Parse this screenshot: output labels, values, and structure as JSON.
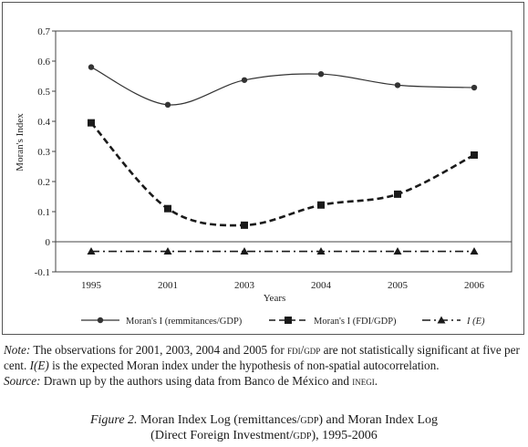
{
  "chart_data": {
    "type": "line",
    "x": [
      "1995",
      "2001",
      "2003",
      "2004",
      "2005",
      "2006"
    ],
    "xlabel": "Years",
    "ylabel": "Moran's Index",
    "ylim": [
      -0.1,
      0.7
    ],
    "yticks": [
      "0.7",
      "0.6",
      "0.5",
      "0.4",
      "0.3",
      "0.2",
      "0.1",
      "0",
      "-0.1"
    ],
    "grid": false,
    "legend_position": "bottom",
    "series": [
      {
        "name": "Moran's I (remmitances/GDP)",
        "values": [
          0.58,
          0.455,
          0.537,
          0.557,
          0.52,
          0.512
        ],
        "style": "solid",
        "marker": "circle",
        "color": "#333333"
      },
      {
        "name": "Moran's I (FDI/GDP)",
        "values": [
          0.395,
          0.11,
          0.055,
          0.122,
          0.158,
          0.288
        ],
        "style": "dashed",
        "marker": "square",
        "color": "#1a1a1a"
      },
      {
        "name": "I (E)",
        "values": [
          -0.032,
          -0.032,
          -0.032,
          -0.032,
          -0.032,
          -0.032
        ],
        "style": "dash-dot",
        "marker": "triangle",
        "color": "#1a1a1a"
      }
    ]
  },
  "notes": {
    "note_label": "Note:",
    "note_a": " The observations for 2001, 2003, 2004 and 2005 for ",
    "note_fdi": "fdi/gdp",
    "note_b": " are not statistically significant at five per cent. ",
    "note_ie": "I(E)",
    "note_c": " is the expected Moran index under the hypothesis of non-spatial autocorrelation.",
    "source_label": "Source:",
    "source_a": " Drawn up by the authors using data from Banco de México and ",
    "source_inegi": "inegi",
    "source_b": "."
  },
  "caption": {
    "label": "Figure 2.",
    "line1_a": " Moran Index Log (remittances/",
    "line1_gdp": "gdp",
    "line1_b": ") and Moran Index Log",
    "line2_a": "(Direct Foreign Investment/",
    "line2_gdp": "gdp",
    "line2_b": "), 1995-2006"
  }
}
